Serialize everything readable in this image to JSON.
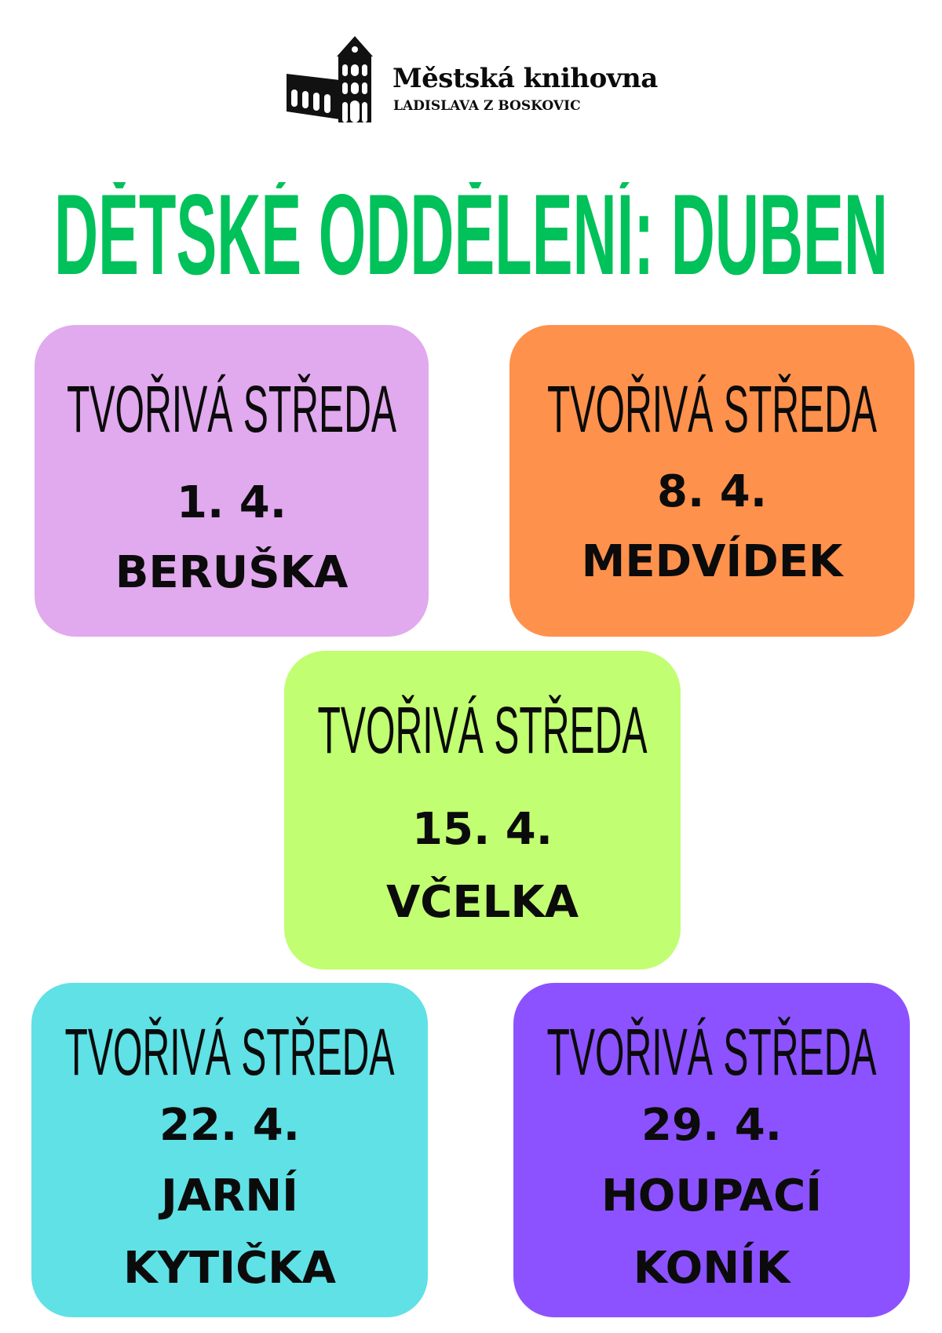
{
  "logo": {
    "name": "Městská knihovna",
    "subtitle": "LADISLAVA Z BOSKOVIC"
  },
  "title": "DĚTSKÉ ODDĚLENÍ: DUBEN",
  "events": [
    {
      "heading": "TVOŘIVÁ STŘEDA",
      "date": "1. 4.",
      "name_lines": [
        "BERUŠKA"
      ],
      "color": "#e1a9ee"
    },
    {
      "heading": "TVOŘIVÁ STŘEDA",
      "date": "8. 4.",
      "name_lines": [
        "MEDVÍDEK"
      ],
      "color": "#fe914c"
    },
    {
      "heading": "TVOŘIVÁ STŘEDA",
      "date": "15. 4.",
      "name_lines": [
        "VČELKA"
      ],
      "color": "#c1fe72"
    },
    {
      "heading": "TVOŘIVÁ STŘEDA",
      "date": "22. 4.",
      "name_lines": [
        "JARNÍ",
        "KYTIČKA"
      ],
      "color": "#5fe1e6"
    },
    {
      "heading": "TVOŘIVÁ STŘEDA",
      "date": "29. 4.",
      "name_lines": [
        "HOUPACÍ",
        "KONÍK"
      ],
      "color": "#8c52ff"
    }
  ]
}
